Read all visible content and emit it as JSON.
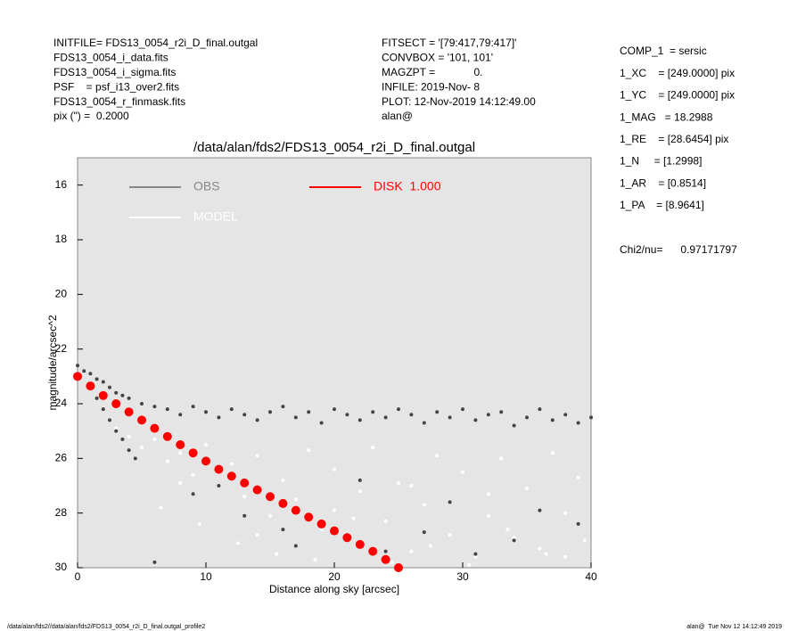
{
  "header": {
    "left": [
      "INITFILE= FDS13_0054_r2i_D_final.outgal",
      "FDS13_0054_i_data.fits",
      "FDS13_0054_i_sigma.fits",
      "PSF    = psf_i13_over2.fits",
      "FDS13_0054_r_finmask.fits",
      "pix (\") =  0.2000"
    ],
    "middle": [
      "FITSECT = '[79:417,79:417]'",
      "CONVBOX = '101, 101'",
      "MAGZPT =             0.",
      "INFILE: 2019-Nov- 8",
      "PLOT: 12-Nov-2019 14:12:49.00",
      "alan@"
    ],
    "right": [
      "COMP_1  = sersic",
      "1_XC    = [249.0000] pix",
      "1_YC    = [249.0000] pix",
      "1_MAG   = 18.2988",
      "1_RE    = [28.6454] pix",
      "1_N     = [1.2998]",
      "1_AR    = [0.8514]",
      "1_PA    = [8.9641]"
    ],
    "chi2": "Chi2/nu=      0.97171797"
  },
  "footer": {
    "left": "/data/alan/fds2//data/alan/fds2/FDS13_0054_r2i_D_final.outgal_profile2",
    "right": "alan@  Tue Nov 12 14:12:49 2019"
  },
  "chart_data": {
    "type": "scatter",
    "title": "/data/alan/fds2/FDS13_0054_r2i_D_final.outgal",
    "x_label": "Distance along sky [arcsec]",
    "y_label": "magnitude/arcsec^2",
    "xlim": [
      0,
      40
    ],
    "ylim": [
      30,
      15
    ],
    "xticks": [
      0,
      10,
      20,
      30,
      40
    ],
    "yticks": [
      16,
      18,
      20,
      22,
      24,
      26,
      28,
      30
    ],
    "background": "#e5e5e5",
    "series": [
      {
        "name": "MODEL",
        "color": "#ffffff",
        "x": [
          3,
          4,
          5,
          6,
          7,
          8,
          9,
          10,
          11,
          12,
          13,
          14,
          15,
          16,
          17,
          18,
          19,
          20,
          21,
          22,
          23,
          24,
          25,
          26,
          27,
          28,
          29,
          30,
          31,
          32,
          33,
          34,
          35,
          36,
          37,
          38,
          39,
          6.5,
          9.5,
          12.5,
          15.5,
          18.5,
          21.5,
          24.5,
          27.5,
          30.5,
          33.5,
          36.5,
          39.5,
          8,
          14,
          20,
          26,
          32,
          38
        ],
        "values": [
          24.9,
          25.2,
          25.6,
          25.3,
          26.1,
          25.8,
          26.6,
          25.5,
          27.0,
          26.2,
          27.4,
          25.9,
          28.1,
          26.8,
          27.5,
          25.7,
          28.6,
          26.4,
          29.0,
          27.2,
          25.6,
          28.3,
          26.9,
          29.4,
          27.7,
          25.9,
          28.8,
          26.5,
          29.6,
          27.3,
          26.0,
          28.9,
          27.1,
          29.3,
          25.8,
          28.0,
          26.7,
          27.8,
          28.4,
          29.1,
          29.5,
          29.7,
          28.2,
          29.8,
          29.2,
          29.9,
          28.6,
          29.5,
          29.0,
          26.9,
          28.8,
          27.9,
          27.0,
          28.1,
          29.6
        ]
      },
      {
        "name": "OBS",
        "color": "#444444",
        "x": [
          0,
          0.5,
          1,
          1.5,
          2,
          2.5,
          3,
          3.5,
          4,
          5,
          6,
          1,
          1.5,
          2,
          2.5,
          3,
          3.5,
          4,
          4.5,
          7,
          8,
          9,
          10,
          11,
          12,
          13,
          14,
          15,
          16,
          17,
          18,
          19,
          20,
          21,
          22,
          23,
          24,
          25,
          26,
          27,
          28,
          29,
          30,
          31,
          32,
          33,
          34,
          35,
          36,
          37,
          38,
          39,
          40,
          9,
          13,
          17,
          22,
          27,
          31,
          36,
          39,
          6,
          11,
          16,
          24,
          29,
          34
        ],
        "values": [
          22.6,
          22.8,
          22.9,
          23.1,
          23.2,
          23.4,
          23.6,
          23.7,
          23.8,
          24.0,
          24.1,
          23.4,
          23.8,
          24.2,
          24.6,
          25.0,
          25.3,
          25.7,
          26.0,
          24.2,
          24.4,
          24.1,
          24.3,
          24.5,
          24.2,
          24.4,
          24.6,
          24.3,
          24.1,
          24.5,
          24.3,
          24.7,
          24.2,
          24.4,
          24.6,
          24.3,
          24.5,
          24.2,
          24.4,
          24.7,
          24.3,
          24.5,
          24.2,
          24.6,
          24.4,
          24.3,
          24.8,
          24.5,
          24.2,
          24.6,
          24.4,
          24.7,
          24.5,
          27.3,
          28.1,
          29.2,
          26.8,
          28.7,
          29.5,
          27.9,
          28.4,
          29.8,
          27.0,
          28.6,
          29.4,
          27.6,
          29.0
        ]
      },
      {
        "name": "DISK  1.000",
        "color": "#ff0000",
        "x": [
          0,
          1,
          2,
          3,
          4,
          5,
          6,
          7,
          8,
          9,
          10,
          11,
          12,
          13,
          14,
          15,
          16,
          17,
          18,
          19,
          20,
          21,
          22,
          23,
          24,
          25
        ],
        "values": [
          23.0,
          23.35,
          23.7,
          24.0,
          24.3,
          24.6,
          24.9,
          25.2,
          25.5,
          25.8,
          26.1,
          26.4,
          26.65,
          26.9,
          27.15,
          27.4,
          27.65,
          27.9,
          28.15,
          28.4,
          28.65,
          28.9,
          29.15,
          29.4,
          29.7,
          30.0
        ]
      }
    ]
  }
}
